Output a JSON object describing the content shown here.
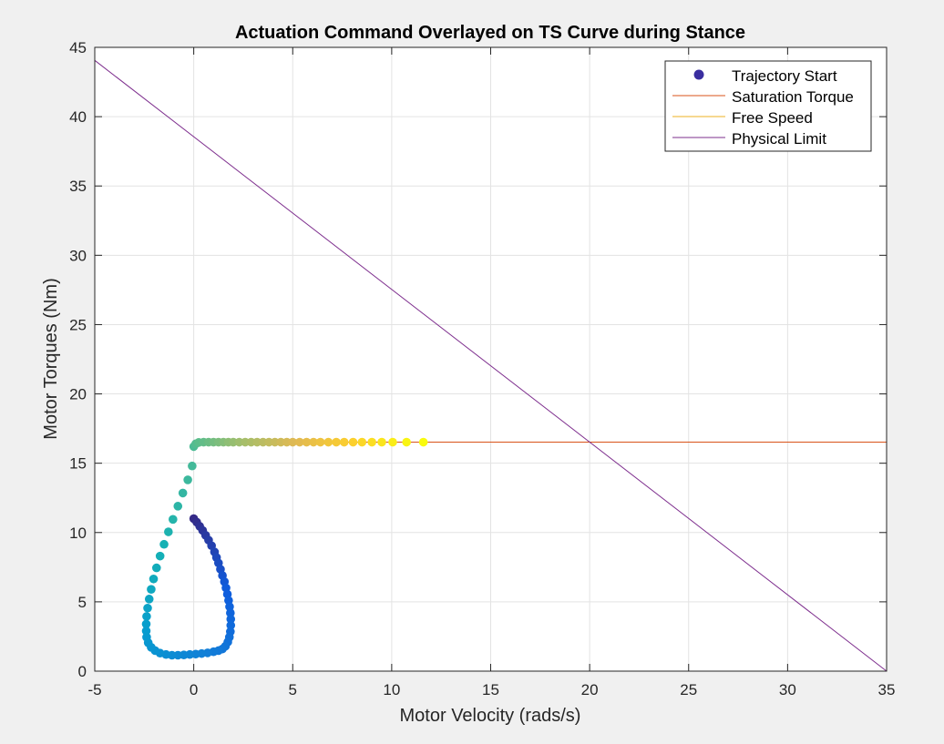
{
  "chart_data": {
    "type": "scatter",
    "title": "Actuation Command Overlayed on TS Curve during Stance",
    "xlabel": "Motor Velocity (rads/s)",
    "ylabel": "Motor Torques (Nm)",
    "xlim": [
      -5,
      35
    ],
    "ylim": [
      0,
      45
    ],
    "xticks": [
      -5,
      0,
      5,
      10,
      15,
      20,
      25,
      30,
      35
    ],
    "yticks": [
      0,
      5,
      10,
      15,
      20,
      25,
      30,
      35,
      40,
      45
    ],
    "grid": true,
    "legend_position": "top-right",
    "colormap": "parula",
    "legend": [
      {
        "label": "Trajectory Start",
        "kind": "marker",
        "color": "#3a2ea0"
      },
      {
        "label": "Saturation Torque",
        "kind": "line",
        "color": "#d95319"
      },
      {
        "label": "Free Speed",
        "kind": "line",
        "color": "#edb120"
      },
      {
        "label": "Physical Limit",
        "kind": "line",
        "color": "#7e2f8e"
      }
    ],
    "series": [
      {
        "name": "Trajectory Start",
        "points": [
          [
            0.0,
            11.0
          ],
          [
            0.15,
            10.75
          ],
          [
            0.3,
            10.45
          ],
          [
            0.45,
            10.15
          ],
          [
            0.6,
            9.8
          ],
          [
            0.75,
            9.45
          ],
          [
            0.9,
            9.05
          ],
          [
            1.05,
            8.6
          ],
          [
            1.15,
            8.2
          ],
          [
            1.25,
            7.8
          ],
          [
            1.35,
            7.35
          ],
          [
            1.45,
            6.9
          ],
          [
            1.55,
            6.45
          ],
          [
            1.63,
            6.0
          ],
          [
            1.7,
            5.55
          ],
          [
            1.76,
            5.1
          ],
          [
            1.81,
            4.65
          ],
          [
            1.85,
            4.2
          ],
          [
            1.87,
            3.75
          ],
          [
            1.87,
            3.3
          ],
          [
            1.85,
            2.85
          ],
          [
            1.8,
            2.45
          ],
          [
            1.72,
            2.1
          ],
          [
            1.6,
            1.8
          ],
          [
            1.45,
            1.6
          ],
          [
            1.25,
            1.48
          ],
          [
            1.0,
            1.4
          ],
          [
            0.7,
            1.32
          ],
          [
            0.4,
            1.27
          ],
          [
            0.1,
            1.23
          ],
          [
            -0.2,
            1.2
          ],
          [
            -0.5,
            1.17
          ],
          [
            -0.8,
            1.15
          ],
          [
            -1.1,
            1.15
          ],
          [
            -1.4,
            1.2
          ],
          [
            -1.7,
            1.3
          ],
          [
            -1.95,
            1.48
          ],
          [
            -2.15,
            1.72
          ],
          [
            -2.3,
            2.05
          ],
          [
            -2.38,
            2.45
          ],
          [
            -2.4,
            2.9
          ],
          [
            -2.4,
            3.4
          ],
          [
            -2.38,
            3.95
          ],
          [
            -2.33,
            4.55
          ],
          [
            -2.25,
            5.2
          ],
          [
            -2.15,
            5.9
          ],
          [
            -2.03,
            6.65
          ],
          [
            -1.88,
            7.45
          ],
          [
            -1.7,
            8.3
          ],
          [
            -1.5,
            9.15
          ],
          [
            -1.28,
            10.05
          ],
          [
            -1.05,
            10.95
          ],
          [
            -0.8,
            11.9
          ],
          [
            -0.55,
            12.85
          ],
          [
            -0.3,
            13.8
          ],
          [
            -0.08,
            14.8
          ],
          [
            0.0,
            16.2
          ],
          [
            0.1,
            16.4
          ],
          [
            0.25,
            16.5
          ],
          [
            0.5,
            16.52
          ],
          [
            0.75,
            16.52
          ],
          [
            1.0,
            16.52
          ],
          [
            1.25,
            16.52
          ],
          [
            1.5,
            16.52
          ],
          [
            1.75,
            16.52
          ],
          [
            2.0,
            16.52
          ],
          [
            2.3,
            16.52
          ],
          [
            2.6,
            16.52
          ],
          [
            2.9,
            16.52
          ],
          [
            3.2,
            16.52
          ],
          [
            3.5,
            16.52
          ],
          [
            3.8,
            16.52
          ],
          [
            4.1,
            16.52
          ],
          [
            4.4,
            16.52
          ],
          [
            4.7,
            16.52
          ],
          [
            5.0,
            16.52
          ],
          [
            5.35,
            16.52
          ],
          [
            5.7,
            16.52
          ],
          [
            6.05,
            16.52
          ],
          [
            6.4,
            16.52
          ],
          [
            6.8,
            16.52
          ],
          [
            7.2,
            16.52
          ],
          [
            7.6,
            16.52
          ],
          [
            8.05,
            16.52
          ],
          [
            8.5,
            16.52
          ],
          [
            9.0,
            16.52
          ],
          [
            9.5,
            16.52
          ],
          [
            10.05,
            16.52
          ],
          [
            10.75,
            16.52
          ],
          [
            11.6,
            16.52
          ]
        ]
      },
      {
        "name": "Saturation Torque",
        "x": [
          0,
          35
        ],
        "y": [
          16.52,
          16.52
        ]
      },
      {
        "name": "Free Speed",
        "x": [
          35,
          35
        ],
        "y": [
          0,
          16.52
        ]
      },
      {
        "name": "Physical Limit",
        "x": [
          -5,
          35
        ],
        "y": [
          44.06,
          0
        ]
      }
    ]
  }
}
